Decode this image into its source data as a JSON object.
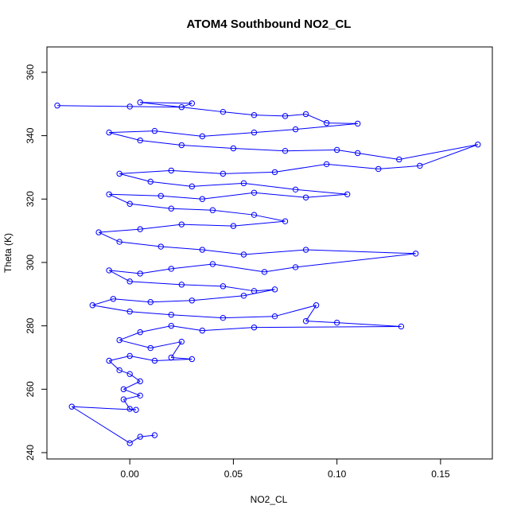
{
  "chart_data": {
    "type": "scatter",
    "title": "ATOM4 Southbound NO2_CL",
    "xlabel": "NO2_CL",
    "ylabel": "Theta (K)",
    "xlim": [
      -0.04,
      0.175
    ],
    "ylim": [
      238,
      368
    ],
    "x_ticks": [
      "0.00",
      "0.05",
      "0.10",
      "0.15"
    ],
    "y_ticks": [
      "240",
      "260",
      "280",
      "300",
      "320",
      "340",
      "360"
    ],
    "grid": false,
    "legend": "none",
    "marker": "open-circle",
    "connected": true,
    "series_color": "#0000ff",
    "series": [
      {
        "values": [
          [
            -0.035,
            349.5
          ],
          [
            0.0,
            349.2
          ],
          [
            0.025,
            349.0
          ],
          [
            0.03,
            350.2
          ],
          [
            0.005,
            350.5
          ],
          [
            0.045,
            347.5
          ],
          [
            0.06,
            346.5
          ],
          [
            0.075,
            346.2
          ],
          [
            0.085,
            346.8
          ],
          [
            0.095,
            344.0
          ],
          [
            0.11,
            343.8
          ],
          [
            0.08,
            342.0
          ],
          [
            0.06,
            341.0
          ],
          [
            0.035,
            339.8
          ],
          [
            0.012,
            341.5
          ],
          [
            -0.01,
            341.0
          ],
          [
            0.005,
            338.5
          ],
          [
            0.025,
            337.0
          ],
          [
            0.05,
            336.0
          ],
          [
            0.075,
            335.2
          ],
          [
            0.1,
            335.5
          ],
          [
            0.11,
            334.5
          ],
          [
            0.13,
            332.5
          ],
          [
            0.168,
            337.2
          ],
          [
            0.14,
            330.5
          ],
          [
            0.12,
            329.5
          ],
          [
            0.095,
            331.0
          ],
          [
            0.07,
            328.5
          ],
          [
            0.045,
            328.0
          ],
          [
            0.02,
            329.0
          ],
          [
            -0.005,
            328.0
          ],
          [
            0.01,
            325.5
          ],
          [
            0.03,
            324.0
          ],
          [
            0.055,
            325.0
          ],
          [
            0.08,
            323.0
          ],
          [
            0.105,
            321.5
          ],
          [
            0.085,
            320.5
          ],
          [
            0.06,
            322.0
          ],
          [
            0.035,
            320.0
          ],
          [
            0.015,
            321.0
          ],
          [
            -0.01,
            321.5
          ],
          [
            0.0,
            318.5
          ],
          [
            0.02,
            317.0
          ],
          [
            0.04,
            316.5
          ],
          [
            0.06,
            315.0
          ],
          [
            0.075,
            313.0
          ],
          [
            0.05,
            311.5
          ],
          [
            0.025,
            312.0
          ],
          [
            0.005,
            310.5
          ],
          [
            -0.015,
            309.5
          ],
          [
            -0.005,
            306.5
          ],
          [
            0.015,
            305.0
          ],
          [
            0.035,
            304.0
          ],
          [
            0.055,
            302.5
          ],
          [
            0.085,
            304.0
          ],
          [
            0.138,
            302.8
          ],
          [
            0.08,
            298.5
          ],
          [
            0.065,
            297.0
          ],
          [
            0.04,
            299.5
          ],
          [
            0.02,
            298.0
          ],
          [
            0.005,
            296.5
          ],
          [
            -0.01,
            297.5
          ],
          [
            0.0,
            294.0
          ],
          [
            0.025,
            293.0
          ],
          [
            0.045,
            292.5
          ],
          [
            0.06,
            291.0
          ],
          [
            0.07,
            291.5
          ],
          [
            0.055,
            289.5
          ],
          [
            0.03,
            288.0
          ],
          [
            0.01,
            287.5
          ],
          [
            -0.008,
            288.5
          ],
          [
            -0.018,
            286.5
          ],
          [
            0.0,
            284.5
          ],
          [
            0.02,
            283.5
          ],
          [
            0.045,
            282.5
          ],
          [
            0.07,
            283.0
          ],
          [
            0.09,
            286.5
          ],
          [
            0.085,
            281.5
          ],
          [
            0.1,
            281.0
          ],
          [
            0.131,
            279.8
          ],
          [
            0.06,
            279.5
          ],
          [
            0.035,
            278.5
          ],
          [
            0.02,
            280.0
          ],
          [
            0.005,
            278.0
          ],
          [
            -0.005,
            275.5
          ],
          [
            0.01,
            273.0
          ],
          [
            0.025,
            275.0
          ],
          [
            0.02,
            270.0
          ],
          [
            0.03,
            269.5
          ],
          [
            0.012,
            269.0
          ],
          [
            0.0,
            270.5
          ],
          [
            -0.01,
            269.0
          ],
          [
            -0.005,
            266.0
          ],
          [
            0.0,
            264.8
          ],
          [
            0.005,
            262.5
          ],
          [
            -0.003,
            260.0
          ],
          [
            0.005,
            258.0
          ],
          [
            -0.003,
            256.8
          ],
          [
            0.0,
            253.8
          ],
          [
            0.003,
            253.5
          ],
          [
            -0.028,
            254.5
          ],
          [
            0.0,
            243.0
          ],
          [
            0.005,
            245.0
          ],
          [
            0.012,
            245.5
          ]
        ]
      }
    ]
  }
}
